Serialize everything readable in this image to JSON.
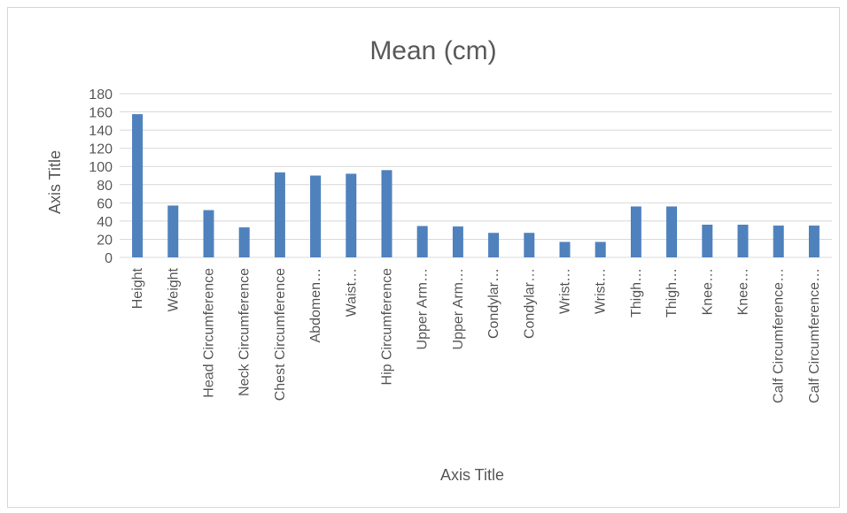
{
  "chart_data": {
    "type": "bar",
    "title": "Mean (cm)",
    "xlabel": "Axis Title",
    "ylabel": "Axis Title",
    "ylim": [
      0,
      180
    ],
    "yticks": [
      0,
      20,
      40,
      60,
      80,
      100,
      120,
      140,
      160,
      180
    ],
    "grid": true,
    "bar_color": "#4f81bd",
    "categories": [
      "Height",
      "Weight",
      "Head Circumference",
      "Neck Circumference",
      "Chest Circumference",
      "Abdomen…",
      "Waist…",
      "Hip Circumference",
      "Upper Arm…",
      "Upper Arm…",
      "Condylar…",
      "Condylar…",
      "Wrist…",
      "Wrist…",
      "Thigh…",
      "Thigh…",
      "Knee…",
      "Knee…",
      "Calf Circumference…",
      "Calf Circumference…"
    ],
    "values": [
      157.5,
      57,
      52,
      33,
      93.5,
      90,
      92,
      96,
      34.5,
      34,
      27,
      27,
      17,
      17,
      56,
      56,
      36,
      36,
      35,
      35
    ]
  }
}
